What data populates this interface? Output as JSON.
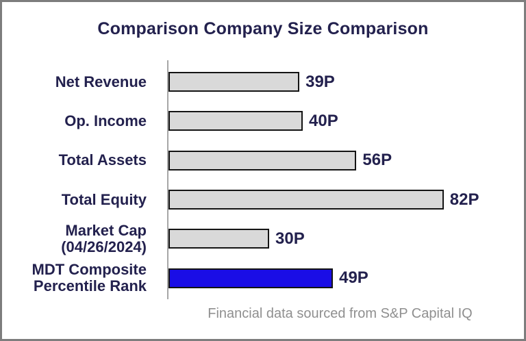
{
  "chart_data": {
    "type": "bar",
    "orientation": "horizontal",
    "title": "Comparison Company Size Comparison",
    "categories": [
      "Net Revenue",
      "Op. Income",
      "Total Assets",
      "Total Equity",
      "Market Cap (04/26/2024)",
      "MDT Composite Percentile Rank"
    ],
    "category_lines": [
      [
        "Net Revenue"
      ],
      [
        "Op. Income"
      ],
      [
        "Total Assets"
      ],
      [
        "Total Equity"
      ],
      [
        "Market Cap",
        "(04/26/2024)"
      ],
      [
        "MDT Composite",
        "Percentile Rank"
      ]
    ],
    "values": [
      39,
      40,
      56,
      82,
      30,
      49
    ],
    "value_labels": [
      "39P",
      "40P",
      "56P",
      "82P",
      "30P",
      "49P"
    ],
    "unit": "P",
    "xlim": [
      0,
      100
    ],
    "grid": false,
    "legend": false,
    "highlight_index": 5,
    "footnote": "Financial data sourced from S&P Capital IQ",
    "colors": {
      "bar_fill": "#d9d9d9",
      "highlight_fill": "#1a0de6",
      "bar_border": "#141414",
      "text": "#23214e",
      "axis": "#a6a6a6",
      "footnote": "#8f8f8f",
      "frame_border": "#7d7d7d"
    }
  }
}
